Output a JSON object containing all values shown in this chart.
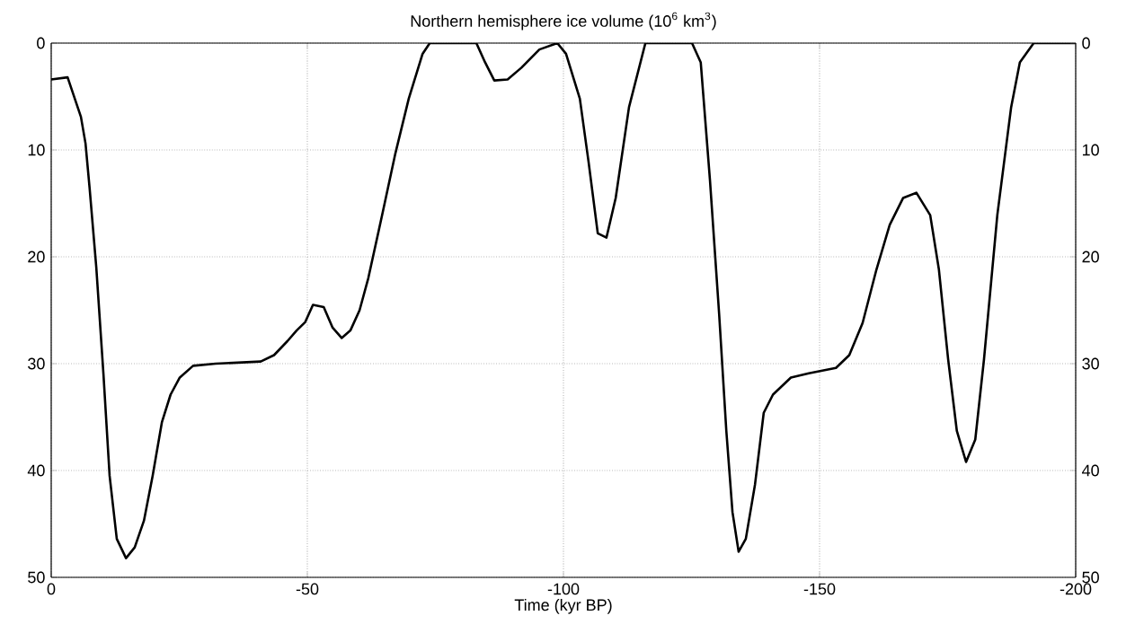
{
  "chart_data": {
    "type": "line",
    "title": "Northern hemisphere ice volume (10$^{6}$ km$^{3}$)",
    "xlabel": "Time (kyr BP)",
    "x": [
      0,
      -3.2,
      -5.8,
      -6.7,
      -7.5,
      -8.8,
      -10.2,
      -11.4,
      -12.8,
      -14.6,
      -16.3,
      -18.1,
      -19.8,
      -21.6,
      -23.3,
      -25.1,
      -27.7,
      -32.1,
      -40.9,
      -43.5,
      -46.1,
      -47.9,
      -49.6,
      -51.1,
      -53.2,
      -54.9,
      -56.7,
      -58.4,
      -60.2,
      -61.9,
      -64.6,
      -67.2,
      -69.8,
      -72.5,
      -73.9,
      -83,
      -84.7,
      -86.5,
      -89.1,
      -91.8,
      -95.3,
      -98.8,
      -100.5,
      -103.2,
      -104.9,
      -106.7,
      -108.4,
      -110.2,
      -112.8,
      -116,
      -125.1,
      -126.8,
      -128.6,
      -130.4,
      -131.8,
      -133,
      -134.2,
      -135.6,
      -137.4,
      -139.1,
      -140.9,
      -144.4,
      -147.9,
      -153.2,
      -155.8,
      -158.4,
      -161.1,
      -163.7,
      -166.3,
      -168.9,
      -171.6,
      -173.3,
      -175.1,
      -176.8,
      -178.6,
      -180.4,
      -182.1,
      -184.7,
      -187.4,
      -189.1,
      -191.8,
      -200
    ],
    "series": [
      {
        "color": "#000000",
        "values": [
          3.4,
          3.2,
          6.9,
          9.4,
          13.6,
          21,
          31,
          40.5,
          46.4,
          48.2,
          47.2,
          44.7,
          40.5,
          35.5,
          32.9,
          31.3,
          30.2,
          30,
          29.8,
          29.2,
          27.9,
          26.9,
          26.1,
          24.5,
          24.7,
          26.6,
          27.6,
          26.9,
          25,
          22,
          16.1,
          10.3,
          5.2,
          1,
          0,
          0,
          1.8,
          3.5,
          3.4,
          2.3,
          0.6,
          0,
          1,
          5.2,
          11.1,
          17.8,
          18.2,
          14.5,
          6,
          0,
          0,
          1.8,
          12.8,
          25.4,
          36.3,
          43.9,
          47.6,
          46.4,
          41.3,
          34.6,
          32.9,
          31.3,
          30.9,
          30.4,
          29.2,
          26.2,
          21.2,
          17,
          14.5,
          14,
          16.1,
          21.2,
          29.6,
          36.3,
          39.2,
          37.1,
          29.6,
          16.1,
          6,
          1.8,
          0,
          0
        ]
      }
    ],
    "xlim": [
      0,
      -200
    ],
    "xticks": [
      0,
      -50,
      -100,
      -150,
      -200
    ],
    "ylim": [
      50,
      0
    ],
    "yticks": [
      0,
      10,
      20,
      30,
      40,
      50
    ],
    "y2lim": [
      50,
      0
    ],
    "y2ticks": [
      0,
      10,
      20,
      30,
      40,
      50
    ],
    "grid": true
  }
}
